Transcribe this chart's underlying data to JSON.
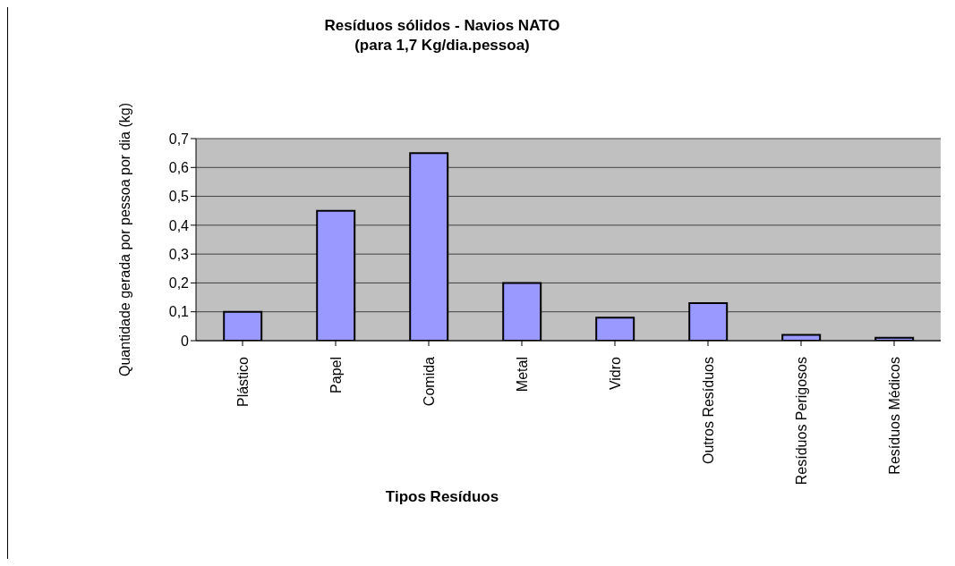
{
  "chart_data": {
    "type": "bar",
    "title": "Resíduos sólidos - Navios NATO",
    "subtitle": "(para 1,7 Kg/dia.pessoa)",
    "xlabel": "Tipos Resíduos",
    "ylabel": "Quantidade gerada por pessoa por dia (kg)",
    "categories": [
      "Plástico",
      "Papel",
      "Comida",
      "Metal",
      "Vidro",
      "Outros Resíduos",
      "Resíduos Perigosos",
      "Resíduos Médicos"
    ],
    "values": [
      0.1,
      0.45,
      0.65,
      0.2,
      0.08,
      0.13,
      0.02,
      0.01
    ],
    "color": "#9999ff",
    "ylim": [
      0,
      0.7
    ],
    "yticks": [
      {
        "value": 0,
        "label": "0"
      },
      {
        "value": 0.1,
        "label": "0,1"
      },
      {
        "value": 0.2,
        "label": "0,2"
      },
      {
        "value": 0.3,
        "label": "0,3"
      },
      {
        "value": 0.4,
        "label": "0,4"
      },
      {
        "value": 0.5,
        "label": "0,5"
      },
      {
        "value": 0.6,
        "label": "0,6"
      },
      {
        "value": 0.7,
        "label": "0,7"
      }
    ],
    "grid": "y",
    "legend": false
  }
}
